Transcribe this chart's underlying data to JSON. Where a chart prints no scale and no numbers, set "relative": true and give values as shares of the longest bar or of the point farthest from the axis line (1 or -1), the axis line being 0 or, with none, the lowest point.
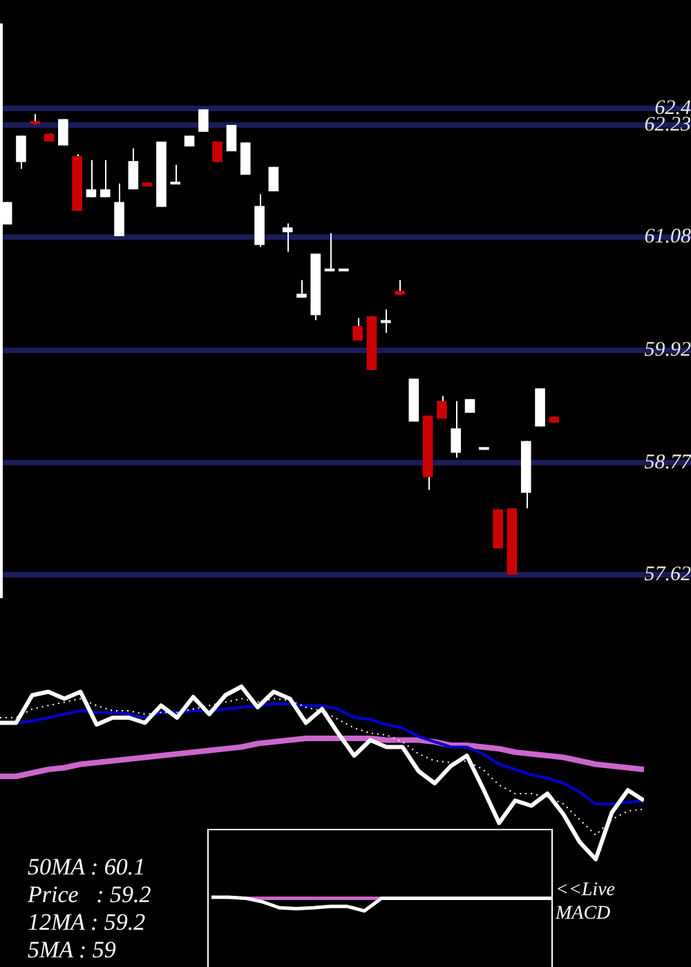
{
  "chart_data": [
    {
      "type": "candlestick",
      "categories": [
        null,
        null,
        null,
        null,
        null,
        null,
        null,
        null,
        null,
        null,
        null,
        null,
        null,
        null,
        null,
        null,
        null,
        null,
        null,
        null,
        null,
        null,
        null,
        null,
        null,
        null,
        null,
        null,
        null,
        null,
        null,
        null,
        null,
        null,
        null,
        null,
        null,
        null,
        null,
        null
      ],
      "ohlc": [
        [
          61.21,
          61.44,
          61.21,
          61.44
        ],
        [
          61.85,
          62.12,
          61.78,
          62.12
        ],
        [
          62.27,
          62.34,
          62.24,
          62.24
        ],
        [
          62.14,
          62.14,
          62.06,
          62.06
        ],
        [
          62.02,
          62.29,
          62.02,
          62.29
        ],
        [
          61.91,
          61.93,
          61.35,
          61.35
        ],
        [
          61.49,
          61.87,
          61.49,
          61.57
        ],
        [
          61.49,
          61.87,
          61.49,
          61.57
        ],
        [
          61.09,
          61.63,
          61.09,
          61.44
        ],
        [
          61.57,
          61.99,
          61.57,
          61.86
        ],
        [
          61.64,
          61.64,
          61.6,
          61.6
        ],
        [
          61.39,
          62.06,
          61.39,
          62.06
        ],
        [
          61.62,
          61.82,
          61.62,
          61.64
        ],
        [
          62.01,
          62.12,
          62.01,
          62.12
        ],
        [
          62.16,
          62.39,
          62.16,
          62.39
        ],
        [
          62.06,
          62.06,
          61.85,
          61.85
        ],
        [
          61.96,
          62.23,
          61.96,
          62.23
        ],
        [
          61.72,
          62.05,
          61.72,
          62.05
        ],
        [
          61.0,
          61.52,
          60.98,
          61.4
        ],
        [
          61.55,
          61.8,
          61.55,
          61.8
        ],
        [
          61.13,
          61.22,
          60.93,
          61.18
        ],
        [
          60.46,
          60.64,
          60.46,
          60.5
        ],
        [
          60.28,
          60.91,
          60.23,
          60.91
        ],
        [
          60.73,
          61.12,
          60.73,
          60.75
        ],
        [
          60.73,
          60.75,
          60.73,
          60.75
        ],
        [
          60.17,
          60.25,
          60.02,
          60.02
        ],
        [
          60.27,
          60.27,
          59.72,
          59.72
        ],
        [
          60.2,
          60.34,
          60.1,
          60.23
        ],
        [
          60.53,
          60.64,
          60.49,
          60.49
        ],
        [
          59.19,
          59.63,
          59.19,
          59.63
        ],
        [
          59.25,
          59.25,
          58.49,
          58.62
        ],
        [
          59.4,
          59.45,
          59.22,
          59.22
        ],
        [
          58.87,
          59.4,
          58.82,
          59.12
        ],
        [
          59.28,
          59.42,
          59.28,
          59.42
        ],
        [
          58.9,
          58.92,
          58.9,
          58.92
        ],
        [
          58.29,
          58.29,
          57.89,
          57.89
        ],
        [
          58.3,
          58.3,
          57.62,
          57.62
        ],
        [
          58.46,
          58.99,
          58.3,
          58.99
        ],
        [
          59.14,
          59.53,
          59.14,
          59.53
        ],
        [
          59.24,
          59.24,
          59.18,
          59.18
        ]
      ],
      "colors": [
        "#ffffff",
        "#ffffff",
        "#cc0000",
        "#cc0000",
        "#ffffff",
        "#cc0000",
        "#ffffff",
        "#ffffff",
        "#ffffff",
        "#ffffff",
        "#cc0000",
        "#ffffff",
        "#ffffff",
        "#ffffff",
        "#ffffff",
        "#cc0000",
        "#ffffff",
        "#ffffff",
        "#ffffff",
        "#ffffff",
        "#ffffff",
        "#ffffff",
        "#ffffff",
        "#ffffff",
        "#ffffff",
        "#cc0000",
        "#cc0000",
        "#ffffff",
        "#cc0000",
        "#ffffff",
        "#cc0000",
        "#cc0000",
        "#ffffff",
        "#ffffff",
        "#ffffff",
        "#cc0000",
        "#cc0000",
        "#ffffff",
        "#ffffff",
        "#cc0000"
      ],
      "ylim": [
        57.38,
        63.27
      ],
      "yticks": [
        57.62,
        58.77,
        59.92,
        61.08,
        62.23,
        62.4
      ],
      "grid": "y"
    },
    {
      "type": "line",
      "relative": true,
      "categories": [
        null,
        null,
        null,
        null,
        null,
        null,
        null,
        null,
        null,
        null,
        null,
        null,
        null,
        null,
        null,
        null,
        null,
        null,
        null,
        null,
        null,
        null,
        null,
        null,
        null,
        null,
        null,
        null,
        null,
        null,
        null,
        null,
        null,
        null,
        null,
        null,
        null,
        null,
        null,
        null,
        null
      ],
      "series": [
        {
          "color": "#ffffff",
          "values": [
            0.79,
            0.79,
            0.95,
            0.97,
            0.93,
            0.97,
            0.78,
            0.82,
            0.82,
            0.79,
            0.89,
            0.82,
            0.94,
            0.84,
            0.95,
            1,
            0.88,
            0.97,
            0.93,
            0.79,
            0.87,
            0.73,
            0.6,
            0.69,
            0.65,
            0.65,
            0.51,
            0.44,
            0.54,
            0.6,
            0.41,
            0.21,
            0.34,
            0.31,
            0.38,
            0.26,
            0.1,
            0,
            0.27,
            0.4,
            0.34
          ]
        },
        {
          "color": "#ffffff",
          "line_style": "dotted",
          "values": [
            0.82,
            0.82,
            0.87,
            0.89,
            0.91,
            0.93,
            0.89,
            0.86,
            0.86,
            0.84,
            0.85,
            0.85,
            0.87,
            0.89,
            0.91,
            0.93,
            0.91,
            0.93,
            0.92,
            0.88,
            0.86,
            0.81,
            0.76,
            0.73,
            0.72,
            0.68,
            0.61,
            0.57,
            0.56,
            0.57,
            0.52,
            0.43,
            0.38,
            0.38,
            0.36,
            0.32,
            0.23,
            0.14,
            0.23,
            0.28,
            0.29
          ]
        },
        {
          "color": "#0000cc",
          "values": [
            null,
            0.79,
            0.8,
            0.82,
            0.84,
            0.86,
            0.85,
            0.85,
            0.84,
            0.82,
            0.85,
            0.85,
            0.86,
            0.86,
            0.87,
            0.88,
            0.89,
            0.9,
            0.9,
            0.89,
            0.89,
            0.87,
            0.82,
            0.81,
            0.78,
            0.76,
            0.71,
            0.68,
            0.65,
            0.65,
            0.61,
            0.55,
            0.52,
            0.49,
            0.47,
            0.44,
            0.39,
            0.32,
            0.32,
            0.33,
            0.34
          ]
        },
        {
          "color": "#cc66cc",
          "values": [
            0.48,
            0.48,
            0.5,
            0.52,
            0.53,
            0.55,
            0.56,
            0.57,
            0.58,
            0.59,
            0.6,
            0.61,
            0.62,
            0.63,
            0.64,
            0.65,
            0.67,
            0.68,
            0.69,
            0.7,
            0.7,
            0.7,
            0.7,
            0.7,
            0.69,
            0.69,
            0.69,
            0.68,
            0.66,
            0.66,
            0.65,
            0.64,
            0.62,
            0.61,
            0.6,
            0.59,
            0.57,
            0.55,
            0.54,
            0.53,
            0.52
          ]
        }
      ],
      "annotations": [
        "50MA : 60.1",
        "Price   : 59.2",
        "12MA : 59.2",
        "5MA : 59"
      ]
    },
    {
      "type": "line",
      "relative": true,
      "categories": [
        null,
        null,
        null,
        null,
        null,
        null,
        null,
        null,
        null,
        null,
        null,
        null,
        null,
        null,
        null,
        null,
        null,
        null,
        null,
        null,
        null
      ],
      "series": [
        {
          "color": "#ffffff",
          "values": [
            1,
            1,
            0.93,
            0.67,
            0.23,
            0.17,
            0.23,
            0.33,
            0.33,
            0,
            0.93,
            0.93,
            0.93,
            0.93,
            0.93,
            0.93,
            0.93,
            0.93,
            0.93,
            0.93,
            0.93
          ]
        },
        {
          "color": "#cc66cc",
          "values": [
            null,
            null,
            0.93,
            0.93,
            0.93,
            0.93,
            0.93,
            0.93,
            0.93,
            0.93,
            0.93,
            null,
            null,
            null,
            null,
            null,
            null,
            null,
            null,
            null,
            null
          ]
        }
      ],
      "annotations": [
        "<<Live MACD"
      ]
    }
  ]
}
